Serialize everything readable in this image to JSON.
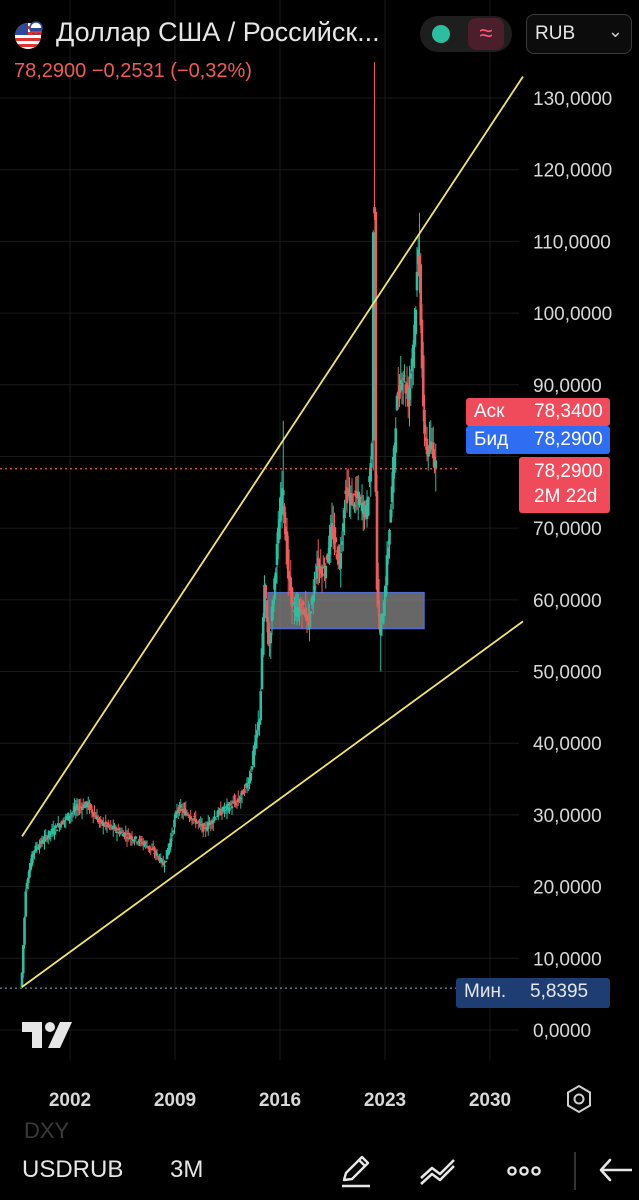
{
  "header": {
    "title": "Доллар США / Российск...",
    "quote": "78,2900  −0,2531 (−0,32%)",
    "currency_selector": "RUB",
    "chevron": "⌄"
  },
  "price_tags": {
    "ask_label": "Аск",
    "ask_value": "78,3400",
    "bid_label": "Бид",
    "bid_value": "78,2900",
    "last_value": "78,2900",
    "countdown": "2M 22d",
    "min_label": "Мин.",
    "min_value": "5,8395"
  },
  "toolbar": {
    "symbol": "USDRUB",
    "timeframe": "3M",
    "below_symbol": "DXY"
  },
  "icons": [
    "flag-usd-rub-icon",
    "status-dot-icon",
    "wave-icon",
    "tradingview-logo",
    "settings-icon",
    "pencil-icon",
    "indicators-icon",
    "more-icon",
    "back-icon"
  ],
  "colors": {
    "background": "#000000",
    "up": "#2bbfa0",
    "down": "#f05a5a",
    "trendline": "#f2e66a",
    "ask": "#f04b5a",
    "bid": "#2f6df2",
    "min_tag": "#1e3d73",
    "zone": "#8a8a8a"
  },
  "chart_data": {
    "type": "candlestick",
    "yticks": [
      "130,0000",
      "120,0000",
      "110,0000",
      "100,0000",
      "90,0000",
      "70,0000",
      "60,0000",
      "50,0000",
      "40,0000",
      "30,0000",
      "20,0000",
      "10,0000",
      "0,0000"
    ],
    "ytick_values": [
      130,
      120,
      110,
      100,
      90,
      70,
      60,
      50,
      40,
      30,
      20,
      10,
      0
    ],
    "xticks": [
      "2002",
      "2009",
      "2016",
      "2023",
      "2030"
    ],
    "xtick_values": [
      2002,
      2009,
      2016,
      2023,
      2030
    ],
    "ylim": [
      0,
      136
    ],
    "xlim": [
      1998.2,
      2032.5
    ],
    "last_price": 78.29,
    "min_price": 5.8395,
    "grid": true,
    "price_path": [
      [
        1998.8,
        6
      ],
      [
        1999.1,
        20
      ],
      [
        1999.6,
        25
      ],
      [
        2000.5,
        27
      ],
      [
        2001.5,
        29
      ],
      [
        2002.5,
        31
      ],
      [
        2003.2,
        31.5
      ],
      [
        2004,
        29
      ],
      [
        2005,
        28
      ],
      [
        2006,
        27
      ],
      [
        2007,
        26
      ],
      [
        2007.8,
        24.5
      ],
      [
        2008.3,
        23
      ],
      [
        2008.8,
        27
      ],
      [
        2009.2,
        31
      ],
      [
        2010,
        30
      ],
      [
        2011,
        28
      ],
      [
        2011.8,
        30
      ],
      [
        2012.5,
        31
      ],
      [
        2013.3,
        32
      ],
      [
        2014,
        35
      ],
      [
        2014.7,
        44
      ],
      [
        2015,
        62
      ],
      [
        2015.3,
        53
      ],
      [
        2015.8,
        66
      ],
      [
        2016.2,
        76
      ],
      [
        2016.6,
        63
      ],
      [
        2017,
        58
      ],
      [
        2017.5,
        59
      ],
      [
        2018,
        57
      ],
      [
        2018.5,
        65
      ],
      [
        2019,
        64
      ],
      [
        2019.5,
        70
      ],
      [
        2020,
        65
      ],
      [
        2020.4,
        75
      ],
      [
        2020.8,
        74
      ],
      [
        2021.3,
        74
      ],
      [
        2021.8,
        72
      ],
      [
        2022.2,
        82
      ],
      [
        2022.3,
        135
      ],
      [
        2022.45,
        64
      ],
      [
        2022.7,
        55
      ],
      [
        2023,
        60
      ],
      [
        2023.5,
        75
      ],
      [
        2023.8,
        87
      ],
      [
        2024.2,
        92
      ],
      [
        2024.6,
        88
      ],
      [
        2025,
        98
      ],
      [
        2025.3,
        110
      ],
      [
        2025.6,
        85
      ],
      [
        2025.9,
        80
      ],
      [
        2026.2,
        82
      ],
      [
        2026.4,
        78.29
      ]
    ],
    "trendlines": [
      {
        "from": [
          1998.8,
          27
        ],
        "to": [
          2032.2,
          133
        ]
      },
      {
        "from": [
          1998.8,
          6
        ],
        "to": [
          2032.2,
          57
        ]
      }
    ],
    "zone": {
      "x0": 2015.2,
      "x1": 2025.6,
      "y0": 56,
      "y1": 61
    },
    "min_line": {
      "y": 5.8395
    },
    "last_line": {
      "y": 78.29
    }
  }
}
